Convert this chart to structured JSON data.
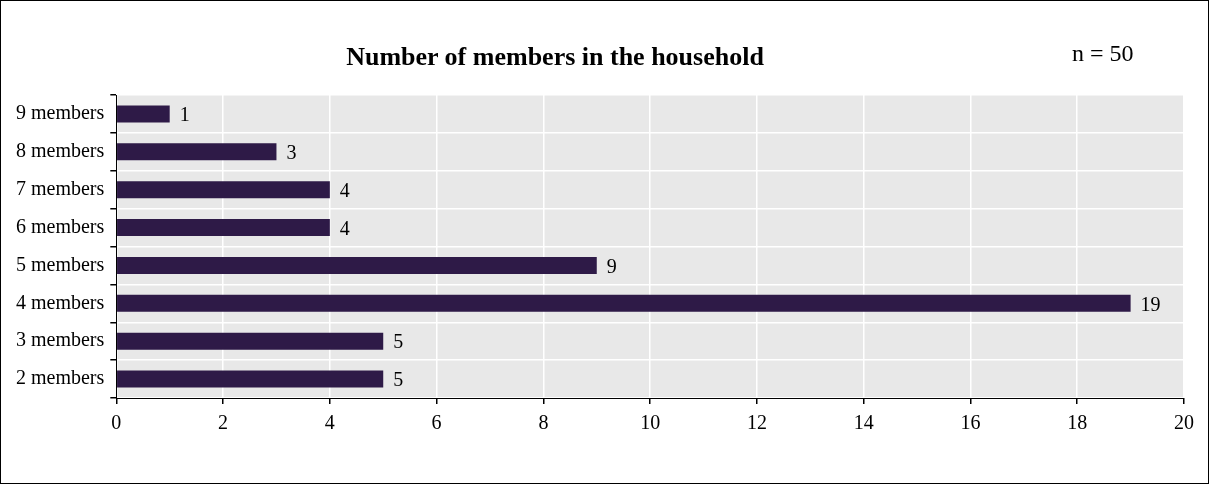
{
  "chart_data": {
    "type": "bar",
    "orientation": "horizontal",
    "title": "Number of members in the household",
    "categories": [
      "9 members",
      "8 members",
      "7 members",
      "6 members",
      "5 members",
      "4 members",
      "3 members",
      "2 members"
    ],
    "values": [
      1,
      3,
      4,
      4,
      9,
      19,
      5,
      5
    ],
    "color": "#2e1a47",
    "xlim": [
      0,
      20
    ],
    "xticks": [
      0,
      2,
      4,
      6,
      8,
      10,
      12,
      14,
      16,
      18,
      20
    ],
    "grid": true,
    "data_labels": true,
    "legend": false,
    "annotations": [
      "n = 50"
    ]
  }
}
